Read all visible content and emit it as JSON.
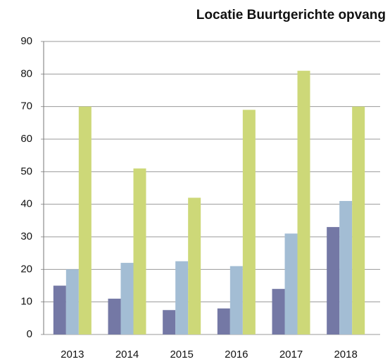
{
  "chart_data": {
    "type": "bar",
    "title": "Locatie Buurtgerichte opvang",
    "categories": [
      "2013",
      "2014",
      "2015",
      "2016",
      "2017",
      "2018"
    ],
    "series": [
      {
        "color": "#7478a5",
        "values": [
          15,
          11,
          7.5,
          8,
          14,
          33
        ]
      },
      {
        "color": "#a3bdd4",
        "values": [
          20,
          22,
          22.5,
          21,
          31,
          41
        ]
      },
      {
        "color": "#cdd878",
        "values": [
          70,
          51,
          42,
          69,
          81,
          70
        ]
      }
    ],
    "ylim": [
      0,
      90
    ],
    "yticks": [
      0,
      10,
      20,
      30,
      40,
      50,
      60,
      70,
      80,
      90
    ],
    "grid": true
  }
}
